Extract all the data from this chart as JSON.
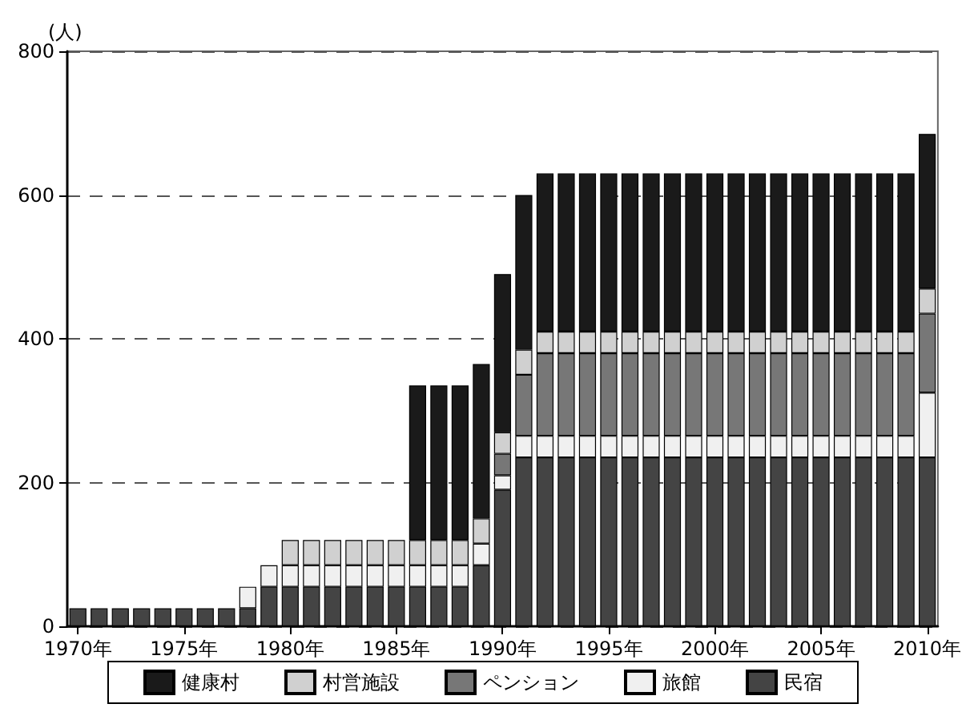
{
  "chart_data": {
    "type": "bar",
    "stacked": true,
    "ylabel": "(人)",
    "categories": [
      "1970年",
      null,
      null,
      null,
      null,
      "1975年",
      null,
      null,
      null,
      null,
      "1980年",
      null,
      null,
      null,
      null,
      "1985年",
      null,
      null,
      null,
      null,
      "1990年",
      null,
      null,
      null,
      null,
      "1995年",
      null,
      null,
      null,
      null,
      "2000年",
      null,
      null,
      null,
      null,
      "2005年",
      null,
      null,
      null,
      null,
      "2010年"
    ],
    "series": [
      {
        "name": "民宿",
        "color": "#444444",
        "values": [
          25,
          25,
          25,
          25,
          25,
          25,
          25,
          25,
          25,
          55,
          55,
          55,
          55,
          55,
          55,
          55,
          55,
          55,
          55,
          85,
          190,
          235,
          235,
          235,
          235,
          235,
          235,
          235,
          235,
          235,
          235,
          235,
          235,
          235,
          235,
          235,
          235,
          235,
          235,
          235,
          235
        ]
      },
      {
        "name": "旅館",
        "color": "#f0f0f0",
        "values": [
          null,
          null,
          null,
          null,
          null,
          null,
          null,
          null,
          30,
          30,
          30,
          30,
          30,
          30,
          30,
          30,
          30,
          30,
          30,
          30,
          20,
          30,
          30,
          30,
          30,
          30,
          30,
          30,
          30,
          30,
          30,
          30,
          30,
          30,
          30,
          30,
          30,
          30,
          30,
          30,
          90
        ]
      },
      {
        "name": "ペンション",
        "color": "#777777",
        "values": [
          null,
          null,
          null,
          null,
          null,
          null,
          null,
          null,
          null,
          null,
          null,
          null,
          null,
          null,
          null,
          null,
          null,
          null,
          null,
          null,
          30,
          85,
          115,
          115,
          115,
          115,
          115,
          115,
          115,
          115,
          115,
          115,
          115,
          115,
          115,
          115,
          115,
          115,
          115,
          115,
          110
        ]
      },
      {
        "name": "村営施設",
        "color": "#d0d0d0",
        "values": [
          null,
          null,
          null,
          null,
          null,
          null,
          null,
          null,
          null,
          null,
          35,
          35,
          35,
          35,
          35,
          35,
          35,
          35,
          35,
          35,
          30,
          35,
          30,
          30,
          30,
          30,
          30,
          30,
          30,
          30,
          30,
          30,
          30,
          30,
          30,
          30,
          30,
          30,
          30,
          30,
          35
        ]
      },
      {
        "name": "健康村",
        "color": "#1a1a1a",
        "values": [
          null,
          null,
          null,
          null,
          null,
          null,
          null,
          null,
          null,
          null,
          null,
          null,
          null,
          null,
          null,
          null,
          215,
          215,
          215,
          215,
          220,
          215,
          220,
          220,
          220,
          220,
          220,
          220,
          220,
          220,
          220,
          220,
          220,
          220,
          220,
          220,
          220,
          220,
          220,
          220,
          215
        ]
      }
    ],
    "ylim": [
      0,
      800
    ],
    "yticks": [
      0,
      200,
      400,
      600,
      800
    ],
    "grid": "y",
    "legend": "bottom"
  }
}
